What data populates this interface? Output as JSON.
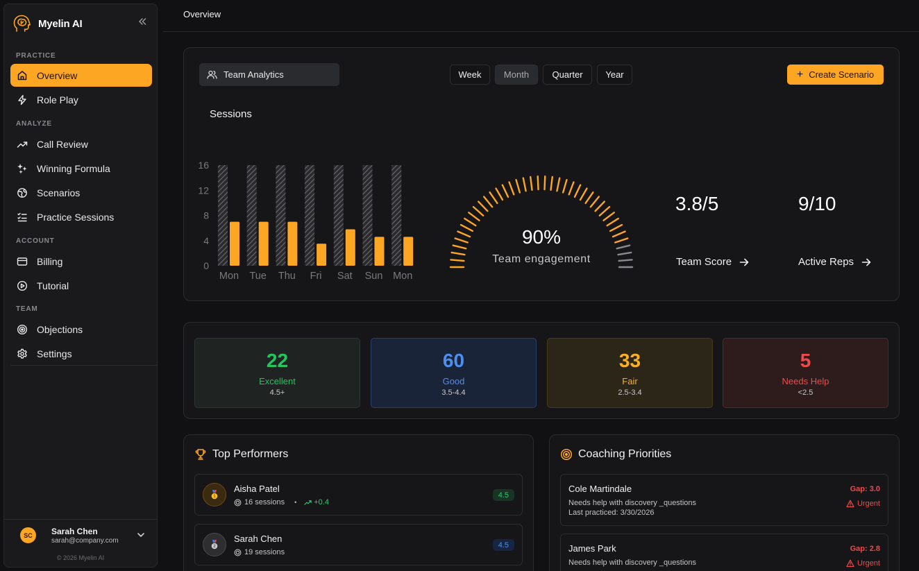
{
  "brand": {
    "name": "Myelin AI"
  },
  "sidebar": {
    "sections": {
      "practice": "PRACTICE",
      "analyze": "ANALYZE",
      "account": "ACCOUNT",
      "team": "TEAM"
    },
    "items": {
      "overview": "Overview",
      "role_play": "Role Play",
      "call_review": "Call Review",
      "winning_formula": "Winning Formula",
      "scenarios": "Scenarios",
      "practice_sessions": "Practice Sessions",
      "billing": "Billing",
      "tutorial": "Tutorial",
      "objections": "Objections",
      "settings": "Settings"
    },
    "active_item": "Overview",
    "user": {
      "initials": "SC",
      "name": "Sarah Chen",
      "email": "sarah@company.com"
    },
    "copyright": "© 2026 Myelin AI"
  },
  "topbar": {
    "title": "Overview"
  },
  "controls": {
    "team_select": "Team Analytics",
    "periods": {
      "week": "Week",
      "month": "Month",
      "quarter": "Quarter",
      "year": "Year"
    },
    "selected_period": "Month",
    "create_button": "Create Scenario"
  },
  "sessions_title": "Sessions",
  "chart_data": {
    "type": "bar",
    "categories": [
      "Mon",
      "Tue",
      "Thu",
      "Fri",
      "Sat",
      "Sun",
      "Mon"
    ],
    "series": [
      {
        "values": [
          16,
          16,
          16,
          16,
          16,
          16,
          16
        ],
        "color": "#5a5a5e",
        "style": "hatched"
      },
      {
        "values": [
          7,
          7,
          7,
          3.5,
          5.8,
          4.6,
          4.6
        ],
        "color": "#fca624"
      }
    ],
    "yticks": [
      "0",
      "4",
      "8",
      "12",
      "16"
    ],
    "ylim": [
      0,
      16
    ],
    "grid": false
  },
  "engagement": {
    "percent": 90,
    "value_label": "90%",
    "label": "Team engagement"
  },
  "stats": {
    "team_score": {
      "value": "3.8/5",
      "label": "Team Score"
    },
    "active_reps": {
      "value": "9/10",
      "label": "Active Reps"
    }
  },
  "tiers": {
    "excellent": {
      "count": "22",
      "name": "Excellent",
      "range": "4.5+",
      "color": "#22c55e"
    },
    "good": {
      "count": "60",
      "name": "Good",
      "range": "3.5-4.4",
      "color": "#4d8ff0"
    },
    "fair": {
      "count": "33",
      "name": "Fair",
      "range": "2.5-3.4",
      "color": "#fbb024"
    },
    "needs_help": {
      "count": "5",
      "name": "Needs Help",
      "range": "<2.5",
      "color": "#ef4a4a"
    }
  },
  "top_performers": {
    "title": "Top Performers",
    "people": [
      {
        "name": "Aisha Patel",
        "sessions": "16 sessions",
        "separator": "•",
        "trend": "+0.4",
        "score": "4.5"
      },
      {
        "name": "Sarah Chen",
        "sessions": "19 sessions",
        "score": "4.5"
      }
    ]
  },
  "coaching": {
    "title": "Coaching Priorities",
    "items": [
      {
        "name": "Cole Martindale",
        "desc": "Needs help with discovery _questions",
        "last": "Last practiced: 3/30/2026",
        "gap": "Gap: 3.0",
        "urgency": "Urgent"
      },
      {
        "name": "James Park",
        "desc": "Needs help with discovery _questions",
        "last": "",
        "gap": "Gap: 2.8",
        "urgency": "Urgent"
      }
    ]
  }
}
